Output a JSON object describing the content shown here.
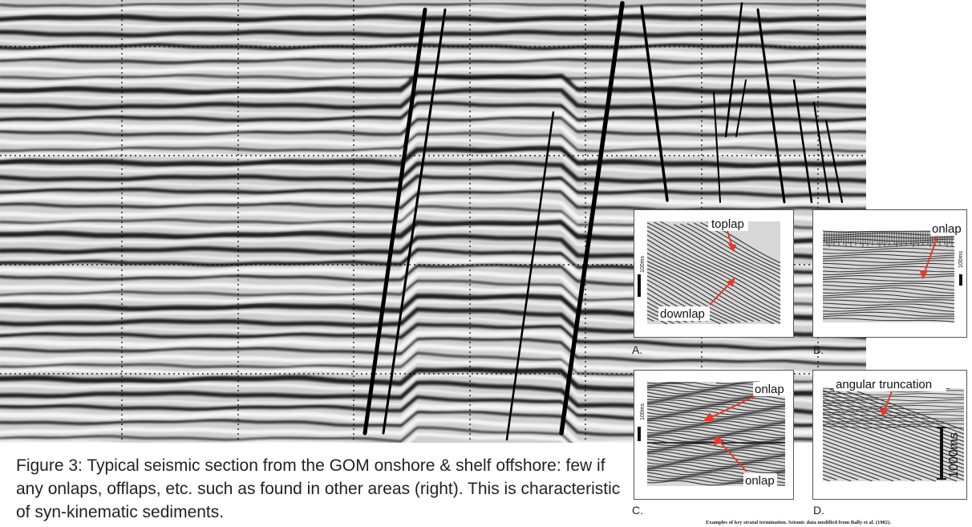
{
  "caption": "Figure 3: Typical seismic section from the GOM onshore & shelf offshore: few if any onlaps, offlaps, etc. such as found in other areas (right). This is characteristic of syn-kinematic sediments.",
  "credit": "Examples of key stratal termination. Seismic data modified from Bally et al. (1982).",
  "colors": {
    "arrow": "#e8382a",
    "fault": "#000000",
    "grid": "#000000"
  },
  "panels": {
    "a": {
      "label": "A.",
      "annotations": [
        "toplap",
        "downlap"
      ],
      "scale": "100ms"
    },
    "b": {
      "label": "B.",
      "annotations": [
        "onlap"
      ],
      "scale": "100ms"
    },
    "c": {
      "label": "C.",
      "annotations": [
        "onlap",
        "onlap"
      ],
      "scale": "100ms"
    },
    "d": {
      "label": "D.",
      "annotations": [
        "angular truncation"
      ],
      "scale": "1000ms"
    }
  }
}
